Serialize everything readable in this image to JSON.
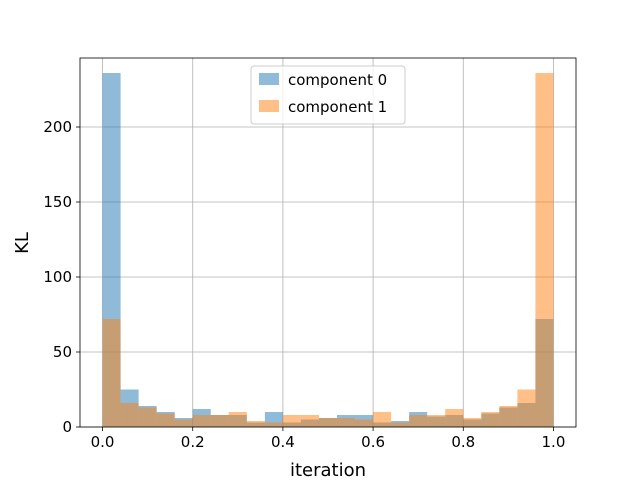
{
  "chart_data": {
    "type": "bar",
    "subtype": "overlapping-histogram",
    "title": "",
    "xlabel": "iteration",
    "ylabel": "KL",
    "xlim": [
      -0.05,
      1.05
    ],
    "ylim": [
      0,
      246
    ],
    "xticks": [
      "0.0",
      "0.2",
      "0.4",
      "0.6",
      "0.8",
      "1.0"
    ],
    "yticks": [
      "0",
      "50",
      "100",
      "150",
      "200"
    ],
    "grid": true,
    "legend_position": "upper-center",
    "bin_edges": [
      0.0,
      0.04,
      0.08,
      0.12,
      0.16,
      0.2,
      0.24,
      0.28,
      0.32,
      0.36,
      0.4,
      0.44,
      0.48,
      0.52,
      0.56,
      0.6,
      0.64,
      0.68,
      0.72,
      0.76,
      0.8,
      0.84,
      0.88,
      0.92,
      0.96,
      1.0
    ],
    "series": [
      {
        "name": "component 0",
        "color": "#1f77b4",
        "opacity": 0.5,
        "values": [
          236,
          25,
          14,
          10,
          6,
          12,
          8,
          8,
          3,
          10,
          3,
          5,
          6,
          8,
          8,
          3,
          4,
          10,
          7,
          8,
          5,
          9,
          13,
          16,
          72
        ]
      },
      {
        "name": "component 1",
        "color": "#ff7f0e",
        "opacity": 0.5,
        "values": [
          72,
          16,
          13,
          9,
          5,
          8,
          8,
          10,
          4,
          3,
          8,
          8,
          6,
          6,
          5,
          10,
          3,
          8,
          8,
          12,
          6,
          10,
          14,
          25,
          236
        ]
      }
    ]
  }
}
